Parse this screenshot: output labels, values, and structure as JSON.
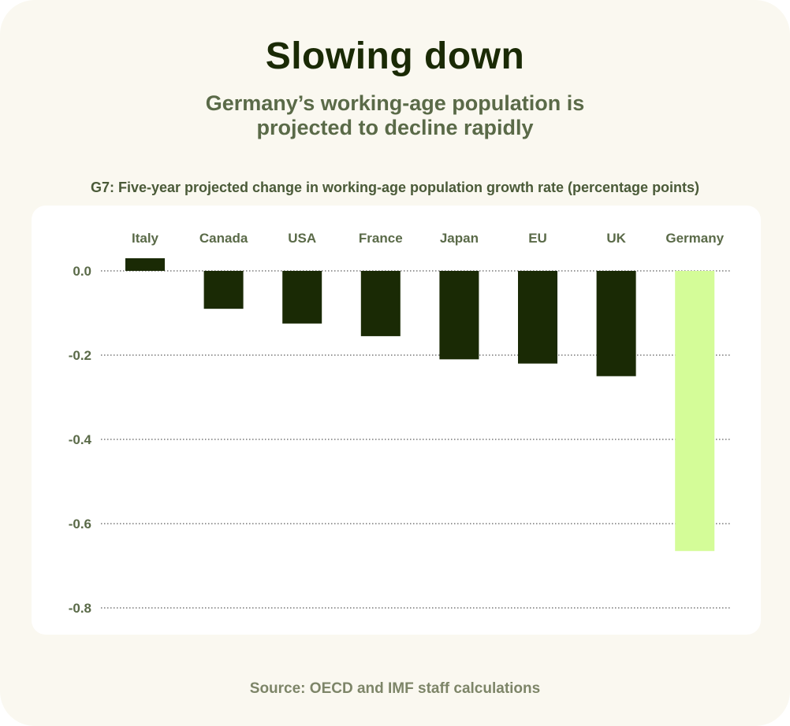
{
  "title": "Slowing down",
  "subtitle_line1": "Germany’s working-age population is",
  "subtitle_line2": "projected to decline rapidly",
  "chart_caption": "G7: Five-year projected change in working-age population growth rate (percentage points)",
  "source": "Source: OECD and IMF staff calculations",
  "colors": {
    "background": "#faf8f0",
    "panel": "#ffffff",
    "bar_default": "#1a2a05",
    "bar_highlight": "#d4fc98",
    "title": "#1a2a05",
    "subtitle": "#5a6a48",
    "axis_text": "#5a6a48"
  },
  "chart_data": {
    "type": "bar",
    "title": "G7: Five-year projected change in working-age population growth rate (percentage points)",
    "xlabel": "",
    "ylabel": "",
    "categories": [
      "Italy",
      "Canada",
      "USA",
      "France",
      "Japan",
      "EU",
      "UK",
      "Germany"
    ],
    "values": [
      0.03,
      -0.09,
      -0.125,
      -0.155,
      -0.21,
      -0.22,
      -0.25,
      -0.665
    ],
    "highlight": "Germany",
    "ylim": [
      -0.8,
      0.0
    ],
    "yticks": [
      0.0,
      -0.2,
      -0.4,
      -0.6,
      -0.8
    ],
    "ytick_labels": [
      "0.0",
      "-0.2",
      "-0.4",
      "-0.6",
      "-0.8"
    ],
    "grid": true,
    "category_labels_position": "top"
  }
}
